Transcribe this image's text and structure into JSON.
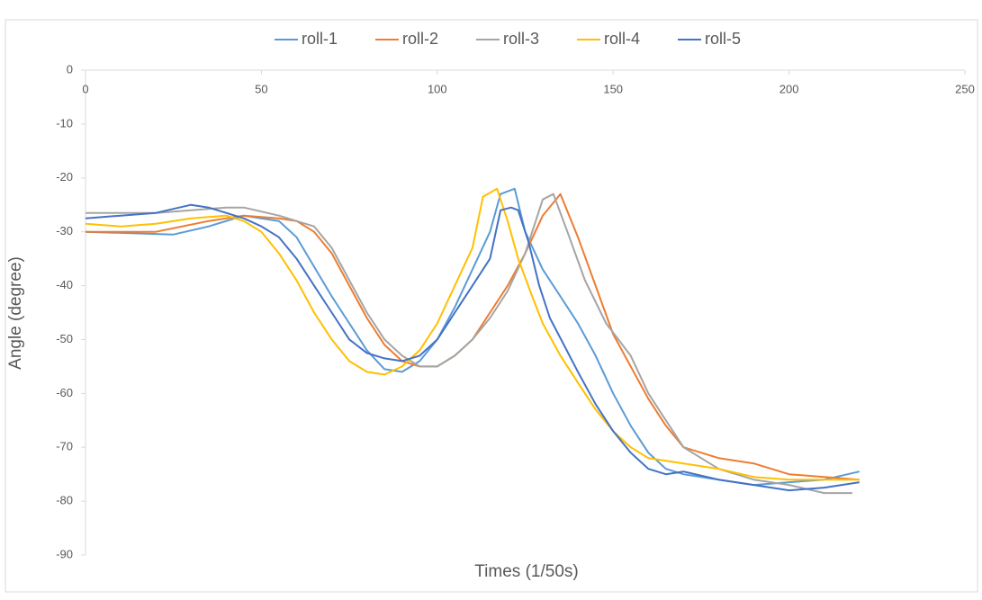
{
  "chart_data": {
    "type": "line",
    "x_label": "Times (1/50s)",
    "y_label": "Angle (degree)",
    "xlim": [
      0,
      250
    ],
    "ylim": [
      -90,
      0
    ],
    "xticks": [
      0,
      50,
      100,
      150,
      200,
      250
    ],
    "yticks": [
      0,
      -10,
      -20,
      -30,
      -40,
      -50,
      -60,
      -70,
      -80,
      -90
    ],
    "grid": false,
    "legend": "top",
    "series": [
      {
        "name": "roll-1",
        "color": "#5b9bd5",
        "x": [
          0,
          25,
          35,
          45,
          55,
          60,
          70,
          80,
          85,
          90,
          95,
          100,
          105,
          110,
          115,
          118,
          122,
          125,
          130,
          135,
          140,
          145,
          150,
          155,
          160,
          165,
          170,
          180,
          190,
          200,
          210,
          220
        ],
        "values": [
          -30,
          -30.5,
          -29,
          -27,
          -28,
          -31,
          -42,
          -52,
          -55.5,
          -56,
          -54,
          -50,
          -44,
          -37,
          -30,
          -23,
          -22,
          -30,
          -37,
          -42,
          -47,
          -53,
          -60,
          -66,
          -71,
          -74,
          -75,
          -76,
          -77,
          -76.5,
          -76,
          -74.5
        ]
      },
      {
        "name": "roll-2",
        "color": "#ed7d31",
        "x": [
          0,
          20,
          35,
          45,
          55,
          60,
          65,
          70,
          75,
          80,
          85,
          90,
          95,
          100,
          105,
          110,
          115,
          120,
          125,
          130,
          135,
          140,
          145,
          150,
          155,
          160,
          165,
          170,
          180,
          190,
          200,
          210,
          220
        ],
        "values": [
          -30,
          -30,
          -28,
          -27,
          -27.5,
          -28,
          -30,
          -34,
          -40,
          -46,
          -51,
          -54,
          -55,
          -55,
          -53,
          -50,
          -45,
          -40,
          -34,
          -27,
          -23,
          -31,
          -40,
          -49,
          -55,
          -61,
          -66,
          -70,
          -72,
          -73,
          -75,
          -75.5,
          -76
        ]
      },
      {
        "name": "roll-3",
        "color": "#a5a5a5",
        "x": [
          0,
          20,
          30,
          40,
          45,
          55,
          65,
          70,
          75,
          80,
          85,
          90,
          95,
          100,
          105,
          110,
          115,
          120,
          125,
          130,
          133,
          137,
          142,
          148,
          155,
          160,
          165,
          170,
          180,
          190,
          200,
          210,
          218
        ],
        "values": [
          -26.5,
          -26.5,
          -26,
          -25.5,
          -25.5,
          -27,
          -29,
          -33,
          -39,
          -45,
          -50,
          -53,
          -55,
          -55,
          -53,
          -50,
          -46,
          -41,
          -34,
          -24,
          -23,
          -30,
          -39,
          -47,
          -53,
          -60,
          -65,
          -70,
          -74,
          -76,
          -77,
          -78.5,
          -78.5
        ]
      },
      {
        "name": "roll-4",
        "color": "#ffc000",
        "x": [
          0,
          10,
          20,
          30,
          40,
          45,
          50,
          55,
          60,
          65,
          70,
          75,
          80,
          85,
          90,
          95,
          100,
          105,
          110,
          113,
          117,
          120,
          123,
          127,
          130,
          135,
          140,
          145,
          150,
          155,
          160,
          170,
          180,
          190,
          200,
          210,
          220
        ],
        "values": [
          -28.5,
          -29,
          -28.5,
          -27.5,
          -27,
          -28,
          -30,
          -34,
          -39,
          -45,
          -50,
          -54,
          -56,
          -56.5,
          -55,
          -52,
          -47,
          -40,
          -33,
          -23.5,
          -22,
          -28,
          -35,
          -42,
          -47,
          -53,
          -58,
          -63,
          -67,
          -70,
          -72,
          -73,
          -74,
          -75.5,
          -76,
          -76,
          -76
        ]
      },
      {
        "name": "roll-5",
        "color": "#4472c4",
        "x": [
          0,
          10,
          20,
          30,
          35,
          40,
          45,
          50,
          55,
          60,
          65,
          70,
          75,
          80,
          85,
          90,
          95,
          100,
          105,
          110,
          115,
          118,
          121,
          123,
          126,
          129,
          132,
          136,
          140,
          145,
          150,
          155,
          160,
          165,
          170,
          180,
          190,
          200,
          210,
          220
        ],
        "values": [
          -27.5,
          -27,
          -26.5,
          -25,
          -25.5,
          -26.5,
          -27.5,
          -29,
          -31,
          -35,
          -40,
          -45,
          -50,
          -52.5,
          -53.5,
          -54,
          -53,
          -50,
          -45,
          -40,
          -35,
          -26,
          -25.5,
          -26,
          -32,
          -40,
          -46,
          -51,
          -56,
          -62,
          -67,
          -71,
          -74,
          -75,
          -74.5,
          -76,
          -77,
          -78,
          -77.5,
          -76.5
        ]
      }
    ]
  }
}
